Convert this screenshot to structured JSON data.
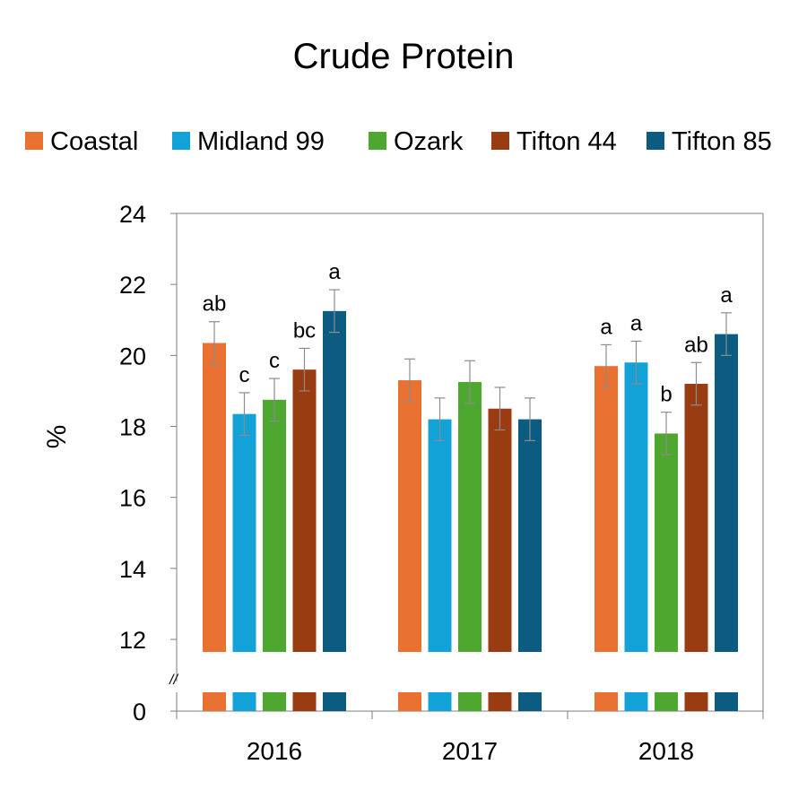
{
  "chart_data": {
    "type": "bar",
    "title": "Crude Protein",
    "ylabel": "%",
    "xlabel": "",
    "categories": [
      "2016",
      "2017",
      "2018"
    ],
    "ylim": [
      0,
      24
    ],
    "axis_break": {
      "marker": "//",
      "between": [
        0,
        12
      ]
    },
    "y_ticks": [
      "0",
      "12",
      "14",
      "16",
      "18",
      "20",
      "22",
      "24"
    ],
    "legend_position": "top",
    "grid": false,
    "series": [
      {
        "name": "Coastal",
        "color": "#E97132",
        "values": [
          20.35,
          19.3,
          19.7
        ],
        "errors": [
          0.6,
          0.6,
          0.6
        ],
        "labels": [
          "ab",
          "",
          "a"
        ]
      },
      {
        "name": "Midland 99",
        "color": "#12A2D8",
        "values": [
          18.35,
          18.2,
          19.8
        ],
        "errors": [
          0.6,
          0.6,
          0.6
        ],
        "labels": [
          "c",
          "",
          "a"
        ]
      },
      {
        "name": "Ozark",
        "color": "#4EA72E",
        "values": [
          18.75,
          19.25,
          17.8
        ],
        "errors": [
          0.6,
          0.6,
          0.6
        ],
        "labels": [
          "c",
          "",
          "b"
        ]
      },
      {
        "name": "Tifton 44",
        "color": "#9A3C12",
        "values": [
          19.6,
          18.5,
          19.2
        ],
        "errors": [
          0.6,
          0.6,
          0.6
        ],
        "labels": [
          "bc",
          "",
          "ab"
        ]
      },
      {
        "name": "Tifton 85",
        "color": "#0B5C80",
        "values": [
          21.25,
          18.2,
          20.6
        ],
        "errors": [
          0.6,
          0.6,
          0.6
        ],
        "labels": [
          "a",
          "",
          "a"
        ]
      }
    ]
  }
}
